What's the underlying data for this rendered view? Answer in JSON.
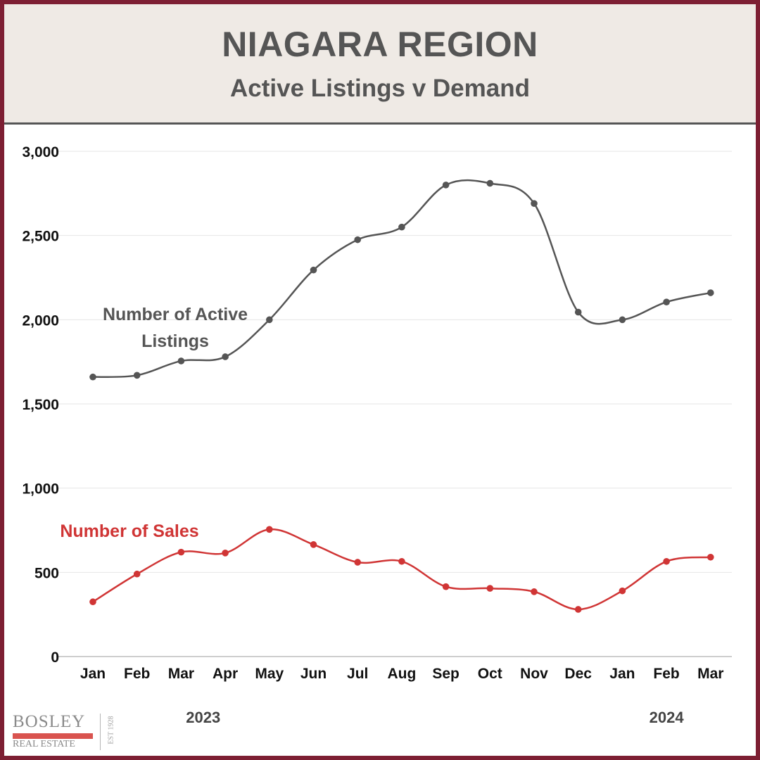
{
  "header": {
    "title": "NIAGARA REGION",
    "subtitle": "Active Listings v Demand"
  },
  "logo": {
    "name": "BOSLEY",
    "sub": "REAL ESTATE",
    "est": "EST 1928"
  },
  "colors": {
    "border": "#7d1f33",
    "header_bg": "#efeae5",
    "listings": "#555555",
    "sales": "#d03535"
  },
  "chart_data": {
    "type": "line",
    "title": "NIAGARA REGION",
    "subtitle": "Active Listings v Demand",
    "categories": [
      "Jan",
      "Feb",
      "Mar",
      "Apr",
      "May",
      "Jun",
      "Jul",
      "Aug",
      "Sep",
      "Oct",
      "Nov",
      "Dec",
      "Jan",
      "Feb",
      "Mar"
    ],
    "year_labels": [
      {
        "label": "2023",
        "from": 0,
        "to": 5
      },
      {
        "label": "2024",
        "from": 12,
        "to": 14
      }
    ],
    "series": [
      {
        "name": "Number of Active Listings",
        "label_lines": [
          "Number of Active",
          "Listings"
        ],
        "color": "#555555",
        "values": [
          1660,
          1670,
          1755,
          1780,
          2000,
          2295,
          2475,
          2550,
          2800,
          2810,
          2690,
          2045,
          2000,
          2105,
          2160
        ]
      },
      {
        "name": "Number of Sales",
        "label_lines": [
          "Number of Sales"
        ],
        "color": "#d03535",
        "values": [
          325,
          490,
          620,
          615,
          755,
          665,
          560,
          565,
          415,
          405,
          385,
          280,
          390,
          565,
          590
        ]
      }
    ],
    "yticks": [
      0,
      500,
      1000,
      1500,
      2000,
      2500,
      3000
    ],
    "ytick_labels": [
      "0",
      "500",
      "1,000",
      "1,500",
      "2,000",
      "2,500",
      "3,000"
    ],
    "ylim": [
      0,
      3000
    ],
    "grid": true,
    "smooth": true
  }
}
